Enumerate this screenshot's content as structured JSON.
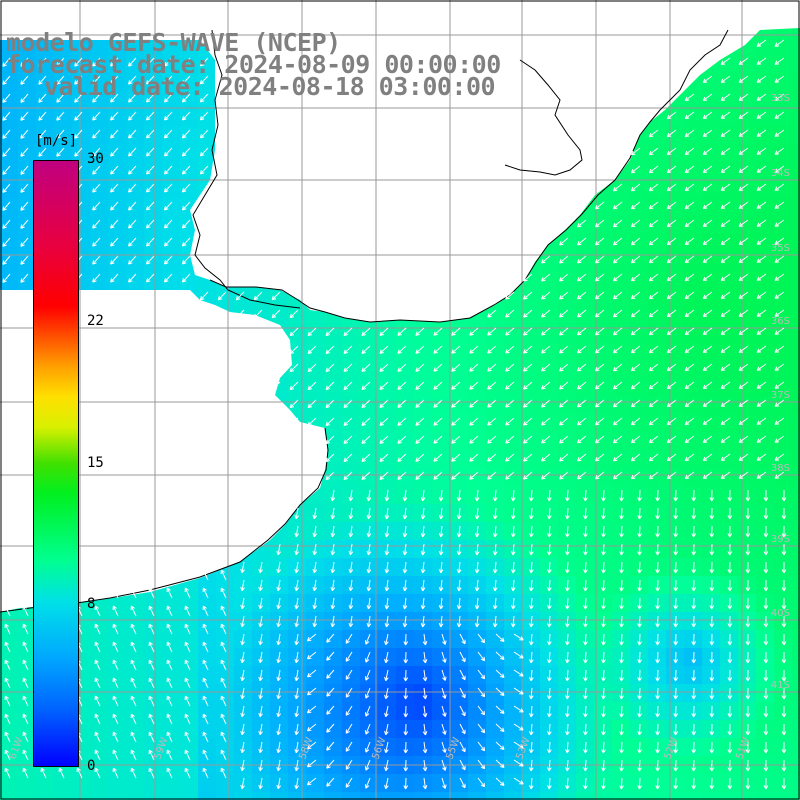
{
  "title": {
    "line1": "modelo GEFS-WAVE (NCEP)",
    "line2": "forecast date: 2024-08-09 00:00:00",
    "line3": "valid date: 2024-08-18 03:00:00"
  },
  "colorbar": {
    "unit": "[m/s]",
    "ticks": [
      {
        "value": 30,
        "label": "30"
      },
      {
        "value": 22,
        "label": "22"
      },
      {
        "value": 15,
        "label": "15"
      },
      {
        "value": 8,
        "label": "8"
      },
      {
        "value": 0,
        "label": "0"
      }
    ],
    "min": 0,
    "max": 30
  },
  "map": {
    "background": "#ffffff",
    "land_color": "#ffffff",
    "grid_color": "#999999",
    "coast_color": "#000000",
    "arrow_color": "#ffffff",
    "lon_labels": [
      "61W",
      "59W",
      "58W",
      "56W",
      "55W",
      "53W",
      "52W",
      "51W"
    ],
    "lat_labels": [
      "33S",
      "34S",
      "35S",
      "36S",
      "37S",
      "38S",
      "39S",
      "40S",
      "41S"
    ]
  }
}
